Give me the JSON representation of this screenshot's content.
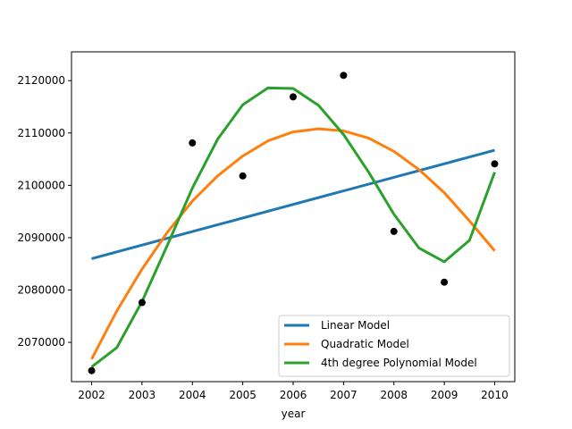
{
  "chart_data": {
    "type": "scatter",
    "xlabel": "year",
    "ylabel": "",
    "xlim": [
      2001.6,
      2010.4
    ],
    "ylim": [
      2062500,
      2125500
    ],
    "x_ticks": [
      2002,
      2003,
      2004,
      2005,
      2006,
      2007,
      2008,
      2009,
      2010
    ],
    "y_ticks": [
      2070000,
      2080000,
      2090000,
      2100000,
      2110000,
      2120000
    ],
    "grid": false,
    "legend_position": "lower-right",
    "points": {
      "color": "#000000",
      "x": [
        2002,
        2003,
        2004,
        2005,
        2006,
        2007,
        2008,
        2009,
        2010
      ],
      "y": [
        2064600,
        2077600,
        2108100,
        2101800,
        2116900,
        2121000,
        2091200,
        2081500,
        2104100
      ]
    },
    "series": [
      {
        "name": "Linear Model",
        "color": "#1f77b4",
        "x": [
          2002,
          2010
        ],
        "y": [
          2086000,
          2106700
        ]
      },
      {
        "name": "Quadratic Model",
        "color": "#ff7f0e",
        "x": [
          2002,
          2002.5,
          2003,
          2003.5,
          2004,
          2004.5,
          2005,
          2005.5,
          2006,
          2006.5,
          2007,
          2007.5,
          2008,
          2008.5,
          2009,
          2009.5,
          2010
        ],
        "y": [
          2066800,
          2076000,
          2084000,
          2091000,
          2097000,
          2101800,
          2105600,
          2108500,
          2110200,
          2110800,
          2110400,
          2109000,
          2106500,
          2103000,
          2098600,
          2093200,
          2087500
        ]
      },
      {
        "name": "4th degree Polynomial Model",
        "color": "#2ca02c",
        "x": [
          2002,
          2002.5,
          2003,
          2003.5,
          2004,
          2004.5,
          2005,
          2005.5,
          2006,
          2006.5,
          2007,
          2007.5,
          2008,
          2008.5,
          2009,
          2009.5,
          2010
        ],
        "y": [
          2065300,
          2069000,
          2077800,
          2088500,
          2099500,
          2108800,
          2115400,
          2118600,
          2118500,
          2115300,
          2109700,
          2102500,
          2094500,
          2088000,
          2085400,
          2089500,
          2102500
        ]
      }
    ]
  }
}
